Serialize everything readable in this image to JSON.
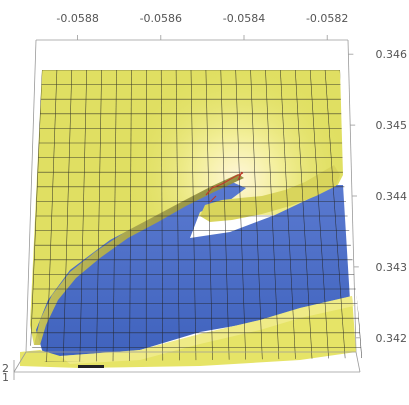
{
  "chart_data": {
    "type": "surface",
    "x_axis": {
      "ticks": [
        "-0.0588",
        "-0.0586",
        "-0.0584",
        "-0.0582"
      ],
      "values": [
        -0.0588,
        -0.0586,
        -0.0584,
        -0.0582
      ],
      "range": [
        -0.0589,
        -0.05815
      ]
    },
    "y_axis": {
      "ticks": [
        "0.346",
        "0.345",
        "0.344",
        "0.343",
        "0.342"
      ],
      "values": [
        0.346,
        0.345,
        0.344,
        0.343,
        0.342
      ],
      "range": [
        0.3418,
        0.3462
      ]
    },
    "z_axis": {
      "ticks": [
        "2",
        "1"
      ],
      "values": [
        2,
        1
      ]
    },
    "surface": {
      "upper_level_color": "#e8e86a",
      "lower_level_color": "#4a6cc7",
      "mesh_color": "#222222",
      "box_color": "#9a9a9a",
      "peak": {
        "x": -0.05842,
        "y": 0.34415
      }
    }
  }
}
